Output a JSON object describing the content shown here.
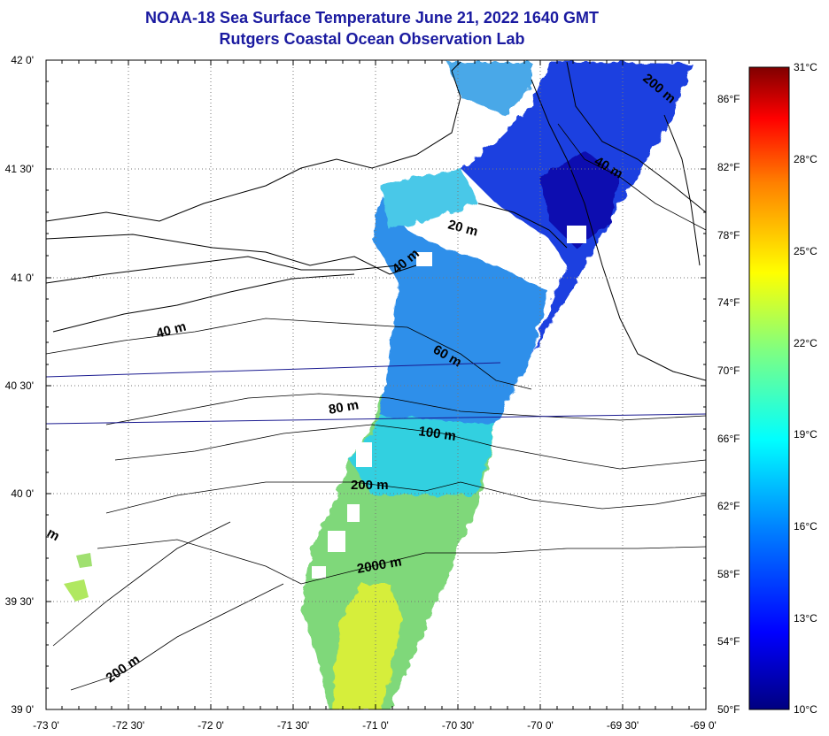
{
  "header": {
    "title": "NOAA-18 Sea Surface Temperature June 21, 2022 1640 GMT",
    "subtitle": "Rutgers Coastal Ocean Observation Lab"
  },
  "map": {
    "lat_labels": [
      "42 0'",
      "41 30'",
      "41 0'",
      "40 30'",
      "40 0'",
      "39 30'",
      "39 0'"
    ],
    "lon_labels": [
      "-73 0'",
      "-72 30'",
      "-72 0'",
      "-71 30'",
      "-71 0'",
      "-70 30'",
      "-70 0'",
      "-69 30'",
      "-69 0'"
    ],
    "fahrenheit_labels": [
      "86°F",
      "82°F",
      "78°F",
      "74°F",
      "70°F",
      "66°F",
      "62°F",
      "58°F",
      "54°F",
      "50°F"
    ],
    "isobath_labels": [
      "200 m",
      "40 m",
      "20 m",
      "40 m",
      "40 m",
      "60 m",
      "80 m",
      "100 m",
      "200 m",
      "2000 m",
      "200 m",
      "m"
    ]
  },
  "colorbar": {
    "celsius_labels": [
      "31°C",
      "28°C",
      "25°C",
      "22°C",
      "19°C",
      "16°C",
      "13°C",
      "10°C"
    ],
    "min_c": 10,
    "max_c": 31,
    "colors": [
      "#000080",
      "#0000ff",
      "#0080ff",
      "#00ffff",
      "#80ff80",
      "#ffff00",
      "#ff8000",
      "#ff0000",
      "#800000"
    ]
  }
}
